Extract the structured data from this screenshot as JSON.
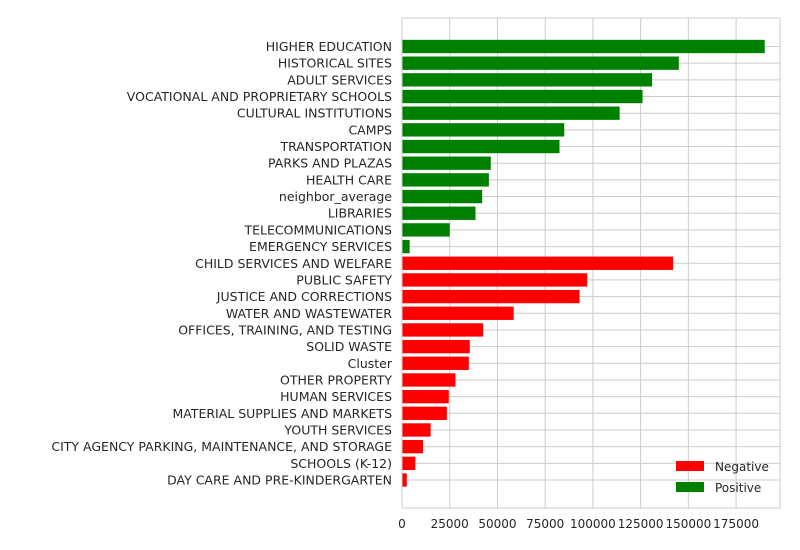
{
  "chart_data": {
    "type": "bar",
    "orientation": "horizontal",
    "categories": [
      "HIGHER EDUCATION",
      "HISTORICAL SITES",
      "ADULT SERVICES",
      "VOCATIONAL AND PROPRIETARY SCHOOLS",
      "CULTURAL INSTITUTIONS",
      "CAMPS",
      "TRANSPORTATION",
      "PARKS AND PLAZAS",
      "HEALTH CARE",
      "neighbor_average",
      "LIBRARIES",
      "TELECOMMUNICATIONS",
      "EMERGENCY SERVICES",
      "CHILD SERVICES AND WELFARE",
      "PUBLIC SAFETY",
      "JUSTICE AND CORRECTIONS",
      "WATER AND WASTEWATER",
      "OFFICES, TRAINING, AND TESTING",
      "SOLID WASTE",
      "Cluster",
      "OTHER PROPERTY",
      "HUMAN SERVICES",
      "MATERIAL SUPPLIES AND MARKETS",
      "YOUTH SERVICES",
      "CITY AGENCY PARKING, MAINTENANCE, AND STORAGE",
      "SCHOOLS (K-12)",
      "DAY CARE AND PRE-KINDERGARTEN"
    ],
    "values": [
      190000,
      145000,
      131000,
      126000,
      114000,
      85000,
      82500,
      46500,
      45500,
      42000,
      38500,
      25000,
      4000,
      142000,
      97000,
      93000,
      58500,
      42500,
      35500,
      35000,
      28000,
      24500,
      23500,
      15000,
      11000,
      7000,
      2500
    ],
    "sign": [
      "Positive",
      "Positive",
      "Positive",
      "Positive",
      "Positive",
      "Positive",
      "Positive",
      "Positive",
      "Positive",
      "Positive",
      "Positive",
      "Positive",
      "Positive",
      "Negative",
      "Negative",
      "Negative",
      "Negative",
      "Negative",
      "Negative",
      "Negative",
      "Negative",
      "Negative",
      "Negative",
      "Negative",
      "Negative",
      "Negative",
      "Negative"
    ],
    "xlim": [
      0,
      198000
    ],
    "xticks": [
      0,
      25000,
      50000,
      75000,
      100000,
      125000,
      150000,
      175000
    ],
    "xtick_labels": [
      "0",
      "25000",
      "50000",
      "75000",
      "100000",
      "125000",
      "150000",
      "175000"
    ],
    "grid": true,
    "legend": {
      "placement": "bottom-right",
      "entries": [
        {
          "label": "Negative",
          "color": "#ff0000"
        },
        {
          "label": "Positive",
          "color": "#008000"
        }
      ]
    },
    "colors": {
      "Negative": "#ff0000",
      "Positive": "#008000"
    },
    "title": "",
    "xlabel": "",
    "ylabel": ""
  }
}
